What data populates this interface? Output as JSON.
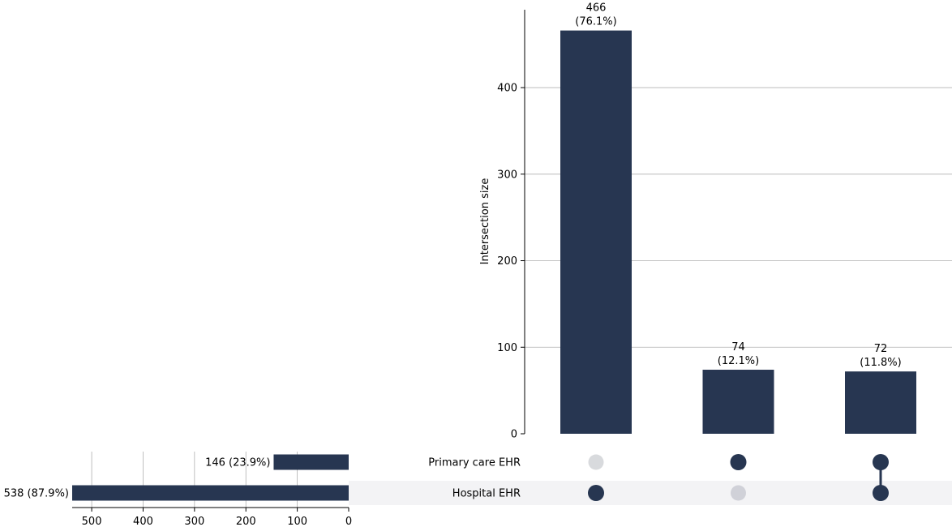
{
  "chart_data": {
    "type": "upset",
    "sets": [
      {
        "name": "Primary care EHR",
        "size": 146,
        "size_label": "146 (23.9%)"
      },
      {
        "name": "Hospital EHR",
        "size": 538,
        "size_label": "538 (87.9%)"
      }
    ],
    "intersections": [
      {
        "members": [
          "Hospital EHR"
        ],
        "size": 466,
        "count_label": "466",
        "pct_label": "(76.1%)"
      },
      {
        "members": [
          "Primary care EHR"
        ],
        "size": 74,
        "count_label": "74",
        "pct_label": "(12.1%)"
      },
      {
        "members": [
          "Primary care EHR",
          "Hospital EHR"
        ],
        "size": 72,
        "count_label": "72",
        "pct_label": "(11.8%)"
      }
    ],
    "intersection_axis": {
      "label": "Intersection size",
      "ylim": [
        0,
        490
      ],
      "ticks": [
        0,
        100,
        200,
        300,
        400
      ],
      "grid": true
    },
    "set_size_axis": {
      "label": "",
      "xlim": [
        538,
        0
      ],
      "ticks": [
        500,
        400,
        300,
        200,
        100,
        0
      ],
      "grid": true
    },
    "colors": {
      "bar": "#273651",
      "dot_active": "#273651",
      "dot_inactive_light": "#d8dadd",
      "dot_inactive_dark": "#d0d1d8",
      "shade": "#f3f3f5",
      "grid": "#b0b0b0"
    }
  }
}
